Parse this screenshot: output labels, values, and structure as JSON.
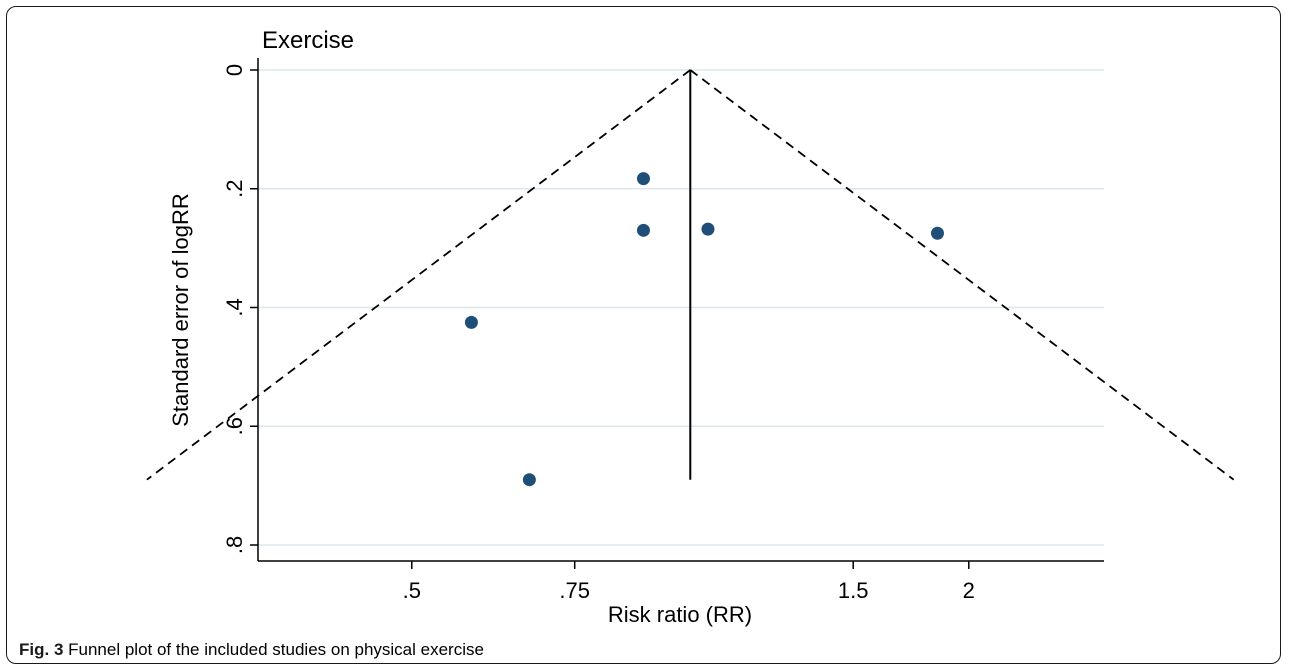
{
  "chart_data": {
    "type": "scatter",
    "subtype": "funnel",
    "title": "Exercise",
    "xlabel": "Risk ratio (RR)",
    "ylabel": "Standard error of logRR",
    "x_scale": "log",
    "y_reversed": true,
    "xlim": [
      0.341,
      2.8
    ],
    "ylim": [
      0,
      0.8
    ],
    "x_ticks": [
      {
        "value": 0.5,
        "label": ".5"
      },
      {
        "value": 0.75,
        "label": ".75"
      },
      {
        "value": 1.5,
        "label": "1.5"
      },
      {
        "value": 2,
        "label": "2"
      }
    ],
    "y_ticks": [
      {
        "value": 0,
        "label": "0"
      },
      {
        "value": 0.2,
        "label": ".2"
      },
      {
        "value": 0.4,
        "label": ".4"
      },
      {
        "value": 0.6,
        "label": ".6"
      },
      {
        "value": 0.8,
        "label": ".8"
      }
    ],
    "grid": "horizontal",
    "pooled_estimate": 1.0,
    "funnel_max_se": 0.69,
    "points": [
      {
        "x": 0.58,
        "y": 0.425
      },
      {
        "x": 0.67,
        "y": 0.69
      },
      {
        "x": 0.89,
        "y": 0.183
      },
      {
        "x": 0.89,
        "y": 0.27
      },
      {
        "x": 1.045,
        "y": 0.268
      },
      {
        "x": 1.85,
        "y": 0.275
      }
    ],
    "point_color": "#1f4e79"
  },
  "caption": {
    "label": "Fig. 3",
    "text": "Funnel plot of the included studies on physical exercise"
  }
}
